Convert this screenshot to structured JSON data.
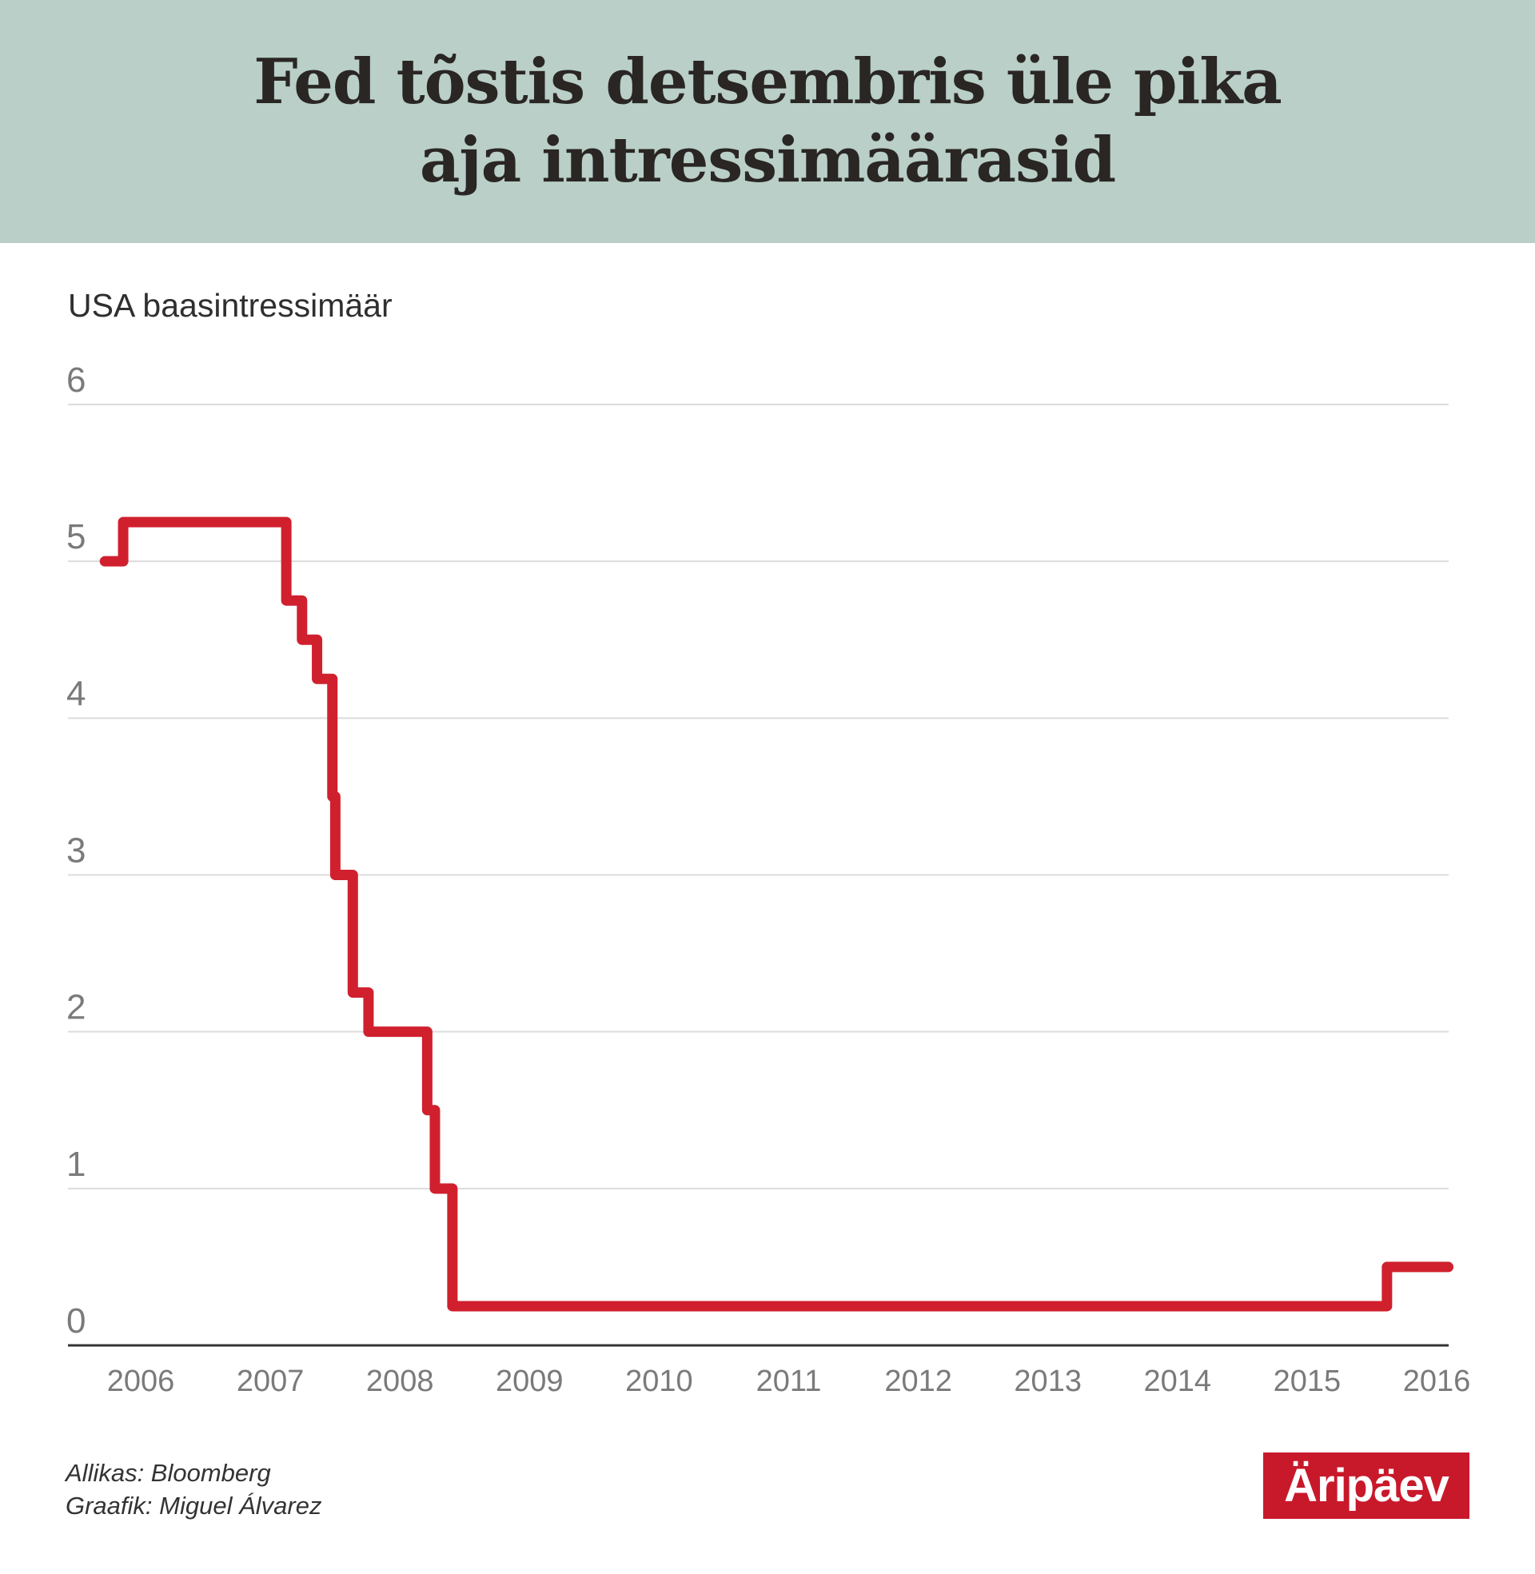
{
  "header": {
    "title": "Fed tõstis detsembris üle pika aja intressimäärasid"
  },
  "chart_data": {
    "type": "line",
    "step": true,
    "subtitle": "USA baasintressimäär",
    "ylim": [
      0,
      6
    ],
    "yticks": [
      "0",
      "1",
      "2",
      "3",
      "4",
      "5",
      "6"
    ],
    "xticks": [
      "2006",
      "2007",
      "2008",
      "2009",
      "2010",
      "2011",
      "2012",
      "2013",
      "2014",
      "2015",
      "2016"
    ],
    "grid": true,
    "color": "#d0202e",
    "series": [
      {
        "points": [
          {
            "date": "2006-05-10",
            "value": 5.0
          },
          {
            "date": "2006-06-29",
            "value": 5.25
          },
          {
            "date": "2007-09-18",
            "value": 4.75
          },
          {
            "date": "2007-10-31",
            "value": 4.5
          },
          {
            "date": "2007-12-11",
            "value": 4.25
          },
          {
            "date": "2008-01-22",
            "value": 3.5
          },
          {
            "date": "2008-01-30",
            "value": 3.0
          },
          {
            "date": "2008-03-18",
            "value": 2.25
          },
          {
            "date": "2008-04-30",
            "value": 2.0
          },
          {
            "date": "2008-10-08",
            "value": 1.5
          },
          {
            "date": "2008-10-29",
            "value": 1.0
          },
          {
            "date": "2008-12-16",
            "value": 0.25
          },
          {
            "date": "2015-12-16",
            "value": 0.5
          },
          {
            "date": "2016-06-01",
            "value": 0.5
          }
        ]
      }
    ]
  },
  "footer": {
    "source": "Allikas: Bloomberg",
    "credit": "Graafik: Miguel Álvarez"
  },
  "logo": {
    "text": "Äripäev",
    "color": "#c8192b"
  }
}
